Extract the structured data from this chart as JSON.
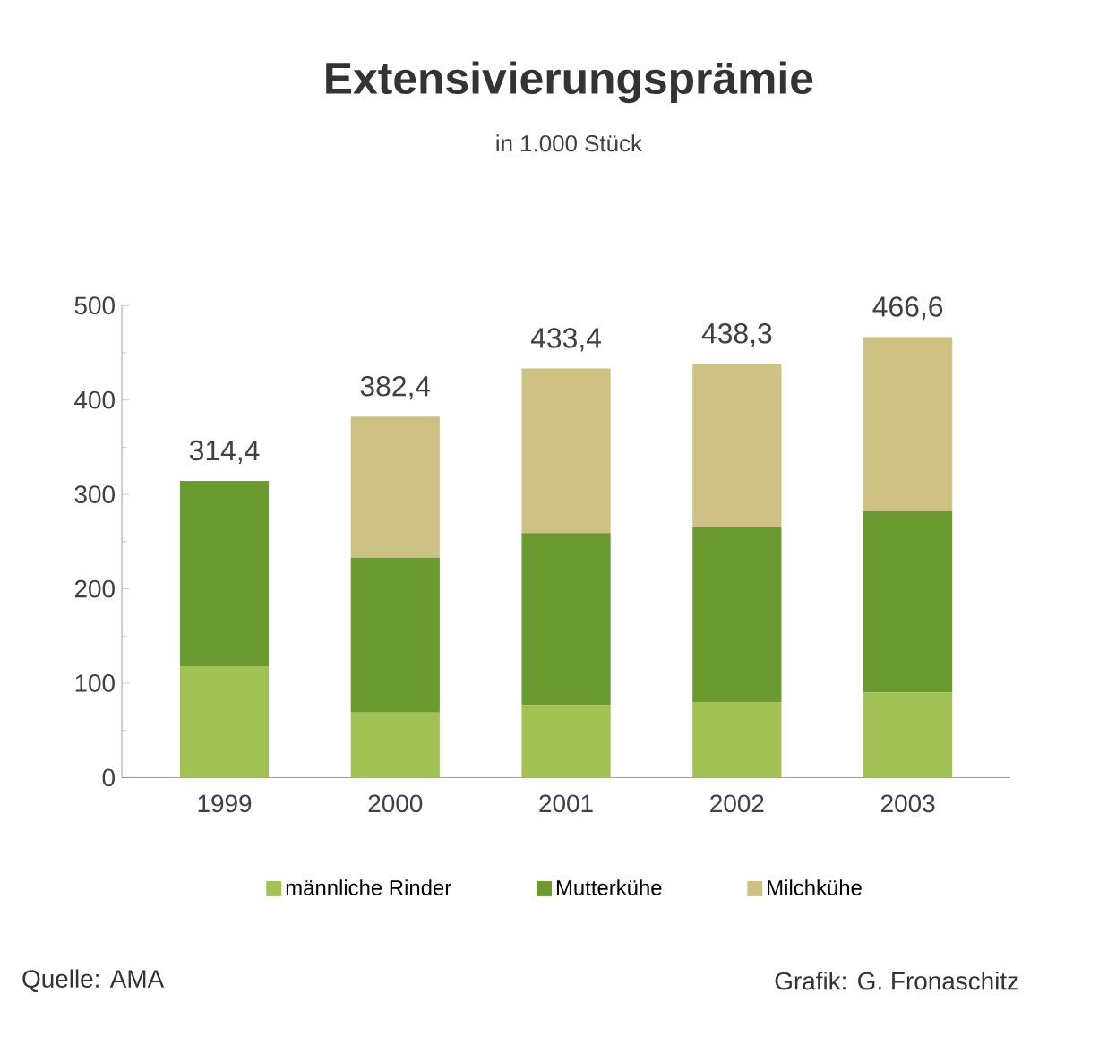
{
  "chart_data": {
    "type": "bar",
    "stacked": true,
    "title": "Extensivierungsprämie",
    "subtitle": "in 1.000 Stück",
    "categories": [
      "1999",
      "2000",
      "2001",
      "2002",
      "2003"
    ],
    "series": [
      {
        "name": "männliche Rinder",
        "color": "#a3c255",
        "values": [
          118,
          69,
          77,
          80,
          90
        ]
      },
      {
        "name": "Mutterkühe",
        "color": "#6a9a30",
        "values": [
          196.4,
          164,
          182,
          185,
          192
        ]
      },
      {
        "name": "Milchkühe",
        "color": "#cdc283",
        "values": [
          0,
          149.4,
          174.4,
          173.3,
          184.6
        ]
      }
    ],
    "totals": [
      "314,4",
      "382,4",
      "433,4",
      "438,3",
      "466,6"
    ],
    "ylim": [
      0,
      500
    ],
    "yticks": [
      0,
      100,
      200,
      300,
      400,
      500
    ],
    "grid": false,
    "legend": "bottom",
    "annotations": [
      "Quelle: AMA",
      "Grafik: G. Fronaschitz"
    ]
  }
}
